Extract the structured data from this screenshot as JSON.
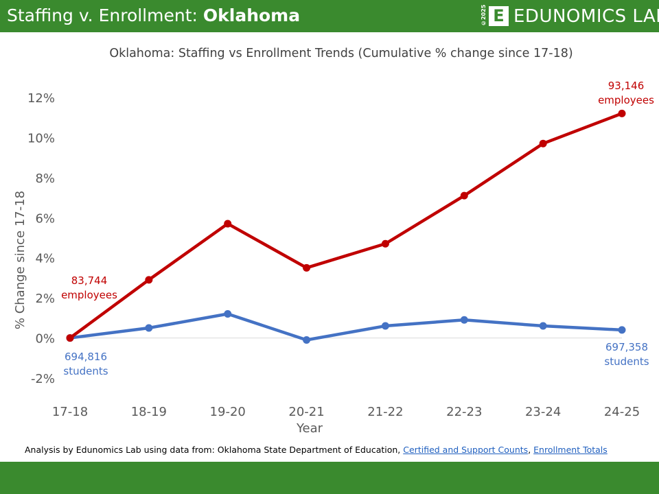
{
  "header": {
    "title_prefix": "Staffing v. Enrollment: ",
    "title_state": "Oklahoma",
    "copyright": "©2025",
    "logo_letter": "E",
    "brand": "EDUNOMICS LAB"
  },
  "colors": {
    "brand_green": "#3a8a2e",
    "employees": "#c00000",
    "students": "#4472c4"
  },
  "chart_data": {
    "type": "line",
    "title": "Oklahoma: Staffing vs Enrollment Trends (Cumulative % change since 17-18)",
    "xlabel": "Year",
    "ylabel": "% Change since 17-18",
    "categories": [
      "17-18",
      "18-19",
      "19-20",
      "20-21",
      "21-22",
      "22-23",
      "23-24",
      "24-25"
    ],
    "ylim": [
      -2,
      12
    ],
    "yticks": [
      -2,
      0,
      2,
      4,
      6,
      8,
      10,
      12
    ],
    "ytick_labels": [
      "-2%",
      "0%",
      "2%",
      "4%",
      "6%",
      "8%",
      "10%",
      "12%"
    ],
    "grid": false,
    "series": [
      {
        "key": "employees",
        "values": [
          0,
          2.9,
          5.7,
          3.5,
          4.7,
          7.1,
          9.7,
          11.2
        ]
      },
      {
        "key": "students",
        "values": [
          0,
          0.5,
          1.2,
          -0.1,
          0.6,
          0.9,
          0.6,
          0.4
        ]
      }
    ],
    "annotations": [
      {
        "key": "emp_start",
        "lines": [
          "83,744",
          "employees"
        ]
      },
      {
        "key": "emp_end",
        "lines": [
          "93,146",
          "employees"
        ]
      },
      {
        "key": "stu_start",
        "lines": [
          "694,816",
          "students"
        ]
      },
      {
        "key": "stu_end",
        "lines": [
          "697,358",
          "students"
        ]
      }
    ]
  },
  "footer": {
    "prefix": "Analysis by Edunomics Lab using data from: Oklahoma State Department of Education, ",
    "link1": "Certified and Support Counts",
    "separator": ", ",
    "link2": "Enrollment Totals"
  }
}
